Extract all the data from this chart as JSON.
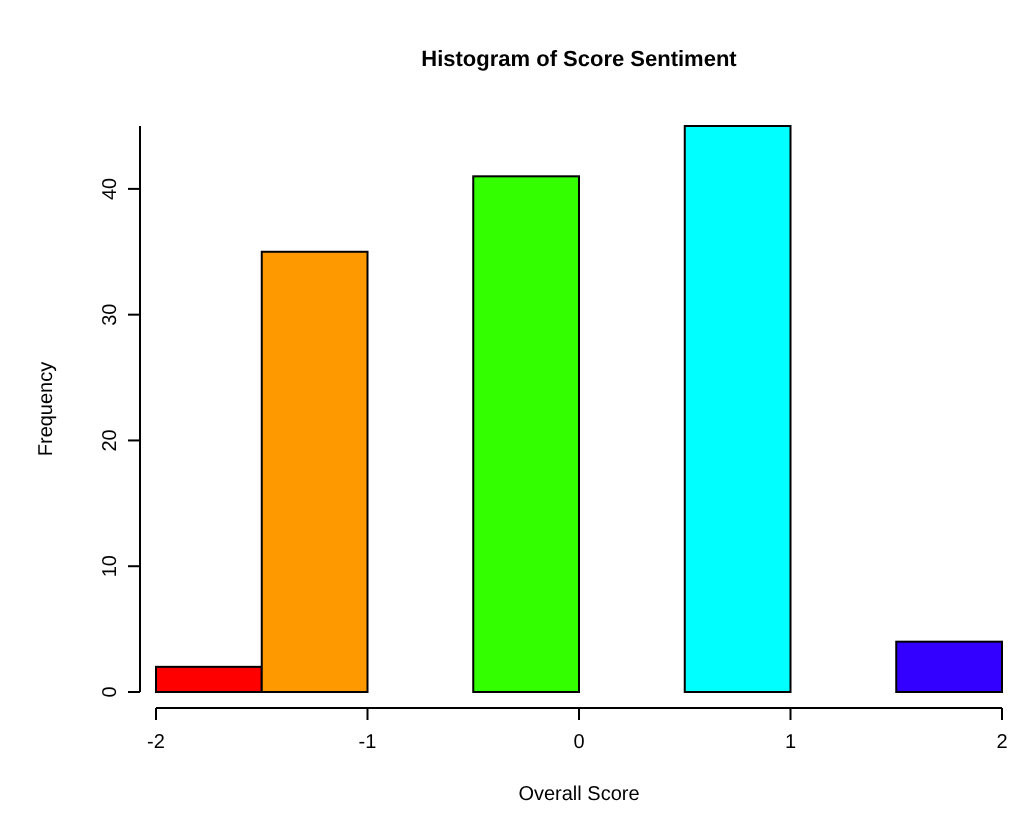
{
  "chart_data": {
    "type": "histogram",
    "title": "Histogram of Score Sentiment",
    "xlabel": "Overall Score",
    "ylabel": "Frequency",
    "bins": [
      -2,
      -1.5,
      -1,
      -0.5,
      0,
      0.5,
      1,
      1.5,
      2
    ],
    "values": [
      2,
      35,
      0,
      41,
      0,
      45,
      0,
      4
    ],
    "colors": [
      "#ff0000",
      "#ff9900",
      "#ccff00",
      "#33ff00",
      "#00ff66",
      "#00ffff",
      "#0066ff",
      "#3300ff"
    ],
    "xlim": [
      -2,
      2
    ],
    "xticks": [
      -2,
      -1,
      0,
      1,
      2
    ],
    "ylim": [
      0,
      45
    ],
    "yticks": [
      0,
      10,
      20,
      30,
      40
    ],
    "grid": false
  }
}
